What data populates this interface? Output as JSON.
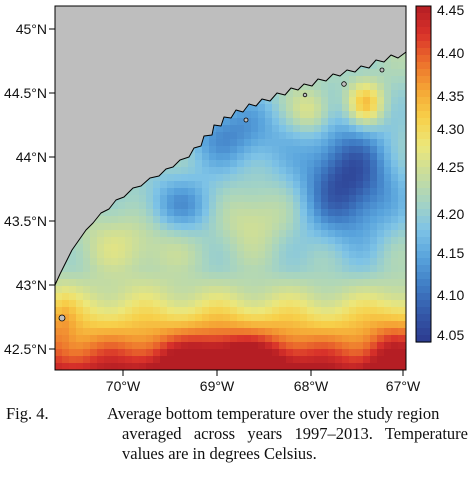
{
  "map": {
    "lat_labels": [
      "45°N",
      "44.5°N",
      "44°N",
      "43.5°N",
      "43°N",
      "42.5°N"
    ],
    "lon_labels": [
      "70°W",
      "69°W",
      "68°W",
      "67°W"
    ],
    "land_color": "#bebebe",
    "coast_color": "#000000"
  },
  "colorbar": {
    "labels": [
      "4.45",
      "4.40",
      "4.35",
      "4.30",
      "4.25",
      "4.20",
      "4.15",
      "4.10",
      "4.05"
    ],
    "min": 4.0,
    "max": 4.47,
    "colors": [
      "#2c3a8f",
      "#3458a8",
      "#3f7cc4",
      "#58a3dc",
      "#7ec3e6",
      "#a6d4c2",
      "#c9dd9c",
      "#ece77a",
      "#f7d04a",
      "#f5a635",
      "#ec6f2c",
      "#d8312a",
      "#b51e24"
    ]
  },
  "caption": {
    "label": "Fig. 4.",
    "line1": "Average bottom temperature over the study region",
    "rest": "averaged across years 1997–2013. Temperature values are in degrees Celsius."
  }
}
